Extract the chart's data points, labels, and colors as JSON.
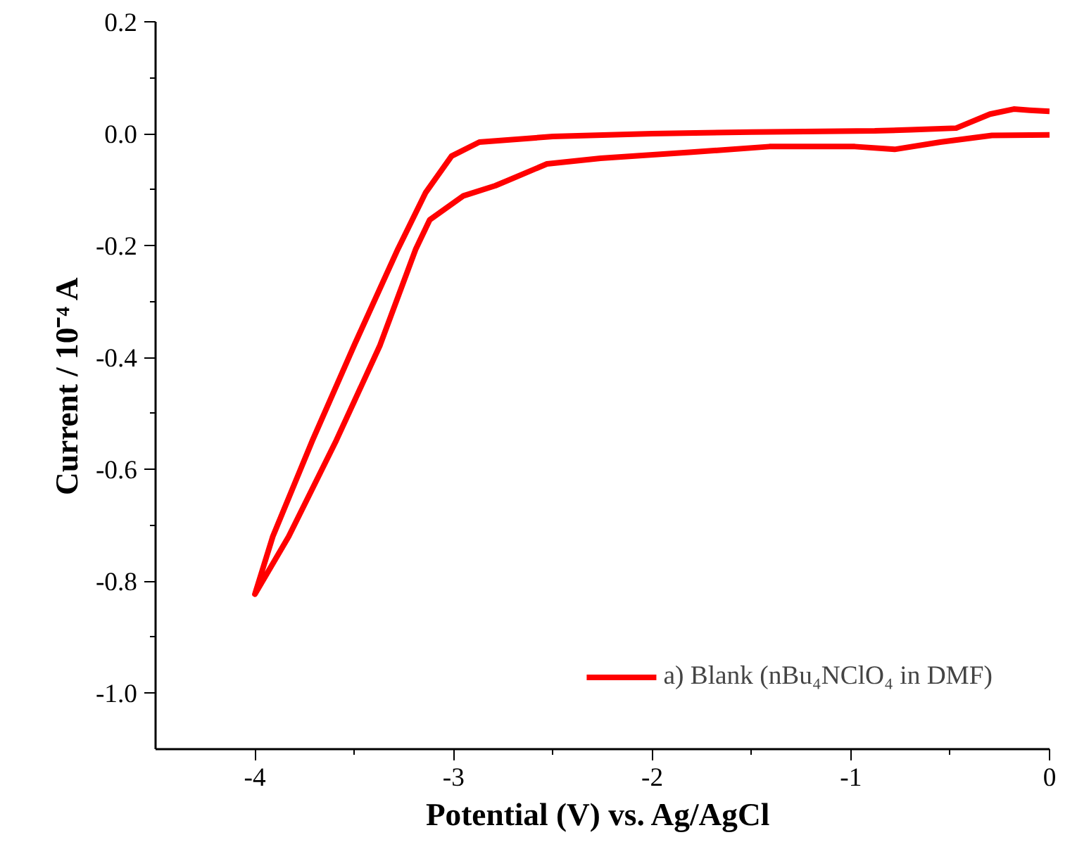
{
  "chart_data": {
    "type": "line",
    "xlabel": "Potential  (V) vs. Ag/AgCl",
    "ylabel": "Current / 10⁻⁴ A",
    "xlim": [
      -4.5,
      0
    ],
    "ylim": [
      -1.1,
      0.2
    ],
    "xticks": [
      -4,
      {
        "value": -3.5,
        "label": null
      },
      -3,
      {
        "value": -2.5,
        "label": null
      },
      -2,
      {
        "value": -1.5,
        "label": null
      },
      -1,
      {
        "value": -0.5,
        "label": null
      },
      0
    ],
    "yticks": [
      {
        "value": -1.0,
        "label": "-1.0"
      },
      {
        "value": -0.9,
        "label": null
      },
      -0.8,
      {
        "value": -0.7,
        "label": null
      },
      -0.6,
      {
        "value": -0.5,
        "label": null
      },
      -0.4,
      {
        "value": -0.3,
        "label": null
      },
      -0.2,
      {
        "value": -0.1,
        "label": null
      },
      {
        "value": 0,
        "label": "0.0"
      },
      {
        "value": 0.1,
        "label": null
      },
      0.2
    ],
    "grid": false,
    "legend": "bottom right",
    "line_style": "solid",
    "series": [
      {
        "name": "a) Blank (nBu₄NClO₄ in DMF)",
        "color": "#ff0000",
        "x": [
          0,
          -0.1,
          -0.18,
          -0.3,
          -0.47,
          -0.7,
          -0.88,
          -1.5,
          -2.0,
          -2.5,
          -2.87,
          -3.01,
          -3.14,
          -3.28,
          -3.5,
          -3.71,
          -3.91,
          -4.0,
          -3.83,
          -3.59,
          -3.37,
          -3.19,
          -3.12,
          -2.95,
          -2.79,
          -2.53,
          -2.26,
          -1.8,
          -1.41,
          -0.98,
          -0.78,
          -0.55,
          -0.29,
          0
        ],
        "values": [
          0.04,
          0.042,
          0.044,
          0.035,
          0.01,
          0.007,
          0.005,
          0.003,
          0.0,
          -0.005,
          -0.015,
          -0.04,
          -0.105,
          -0.206,
          -0.378,
          -0.548,
          -0.72,
          -0.823,
          -0.72,
          -0.548,
          -0.378,
          -0.206,
          -0.154,
          -0.111,
          -0.093,
          -0.054,
          -0.044,
          -0.033,
          -0.023,
          -0.023,
          -0.028,
          -0.015,
          -0.003,
          -0.002
        ]
      }
    ]
  }
}
